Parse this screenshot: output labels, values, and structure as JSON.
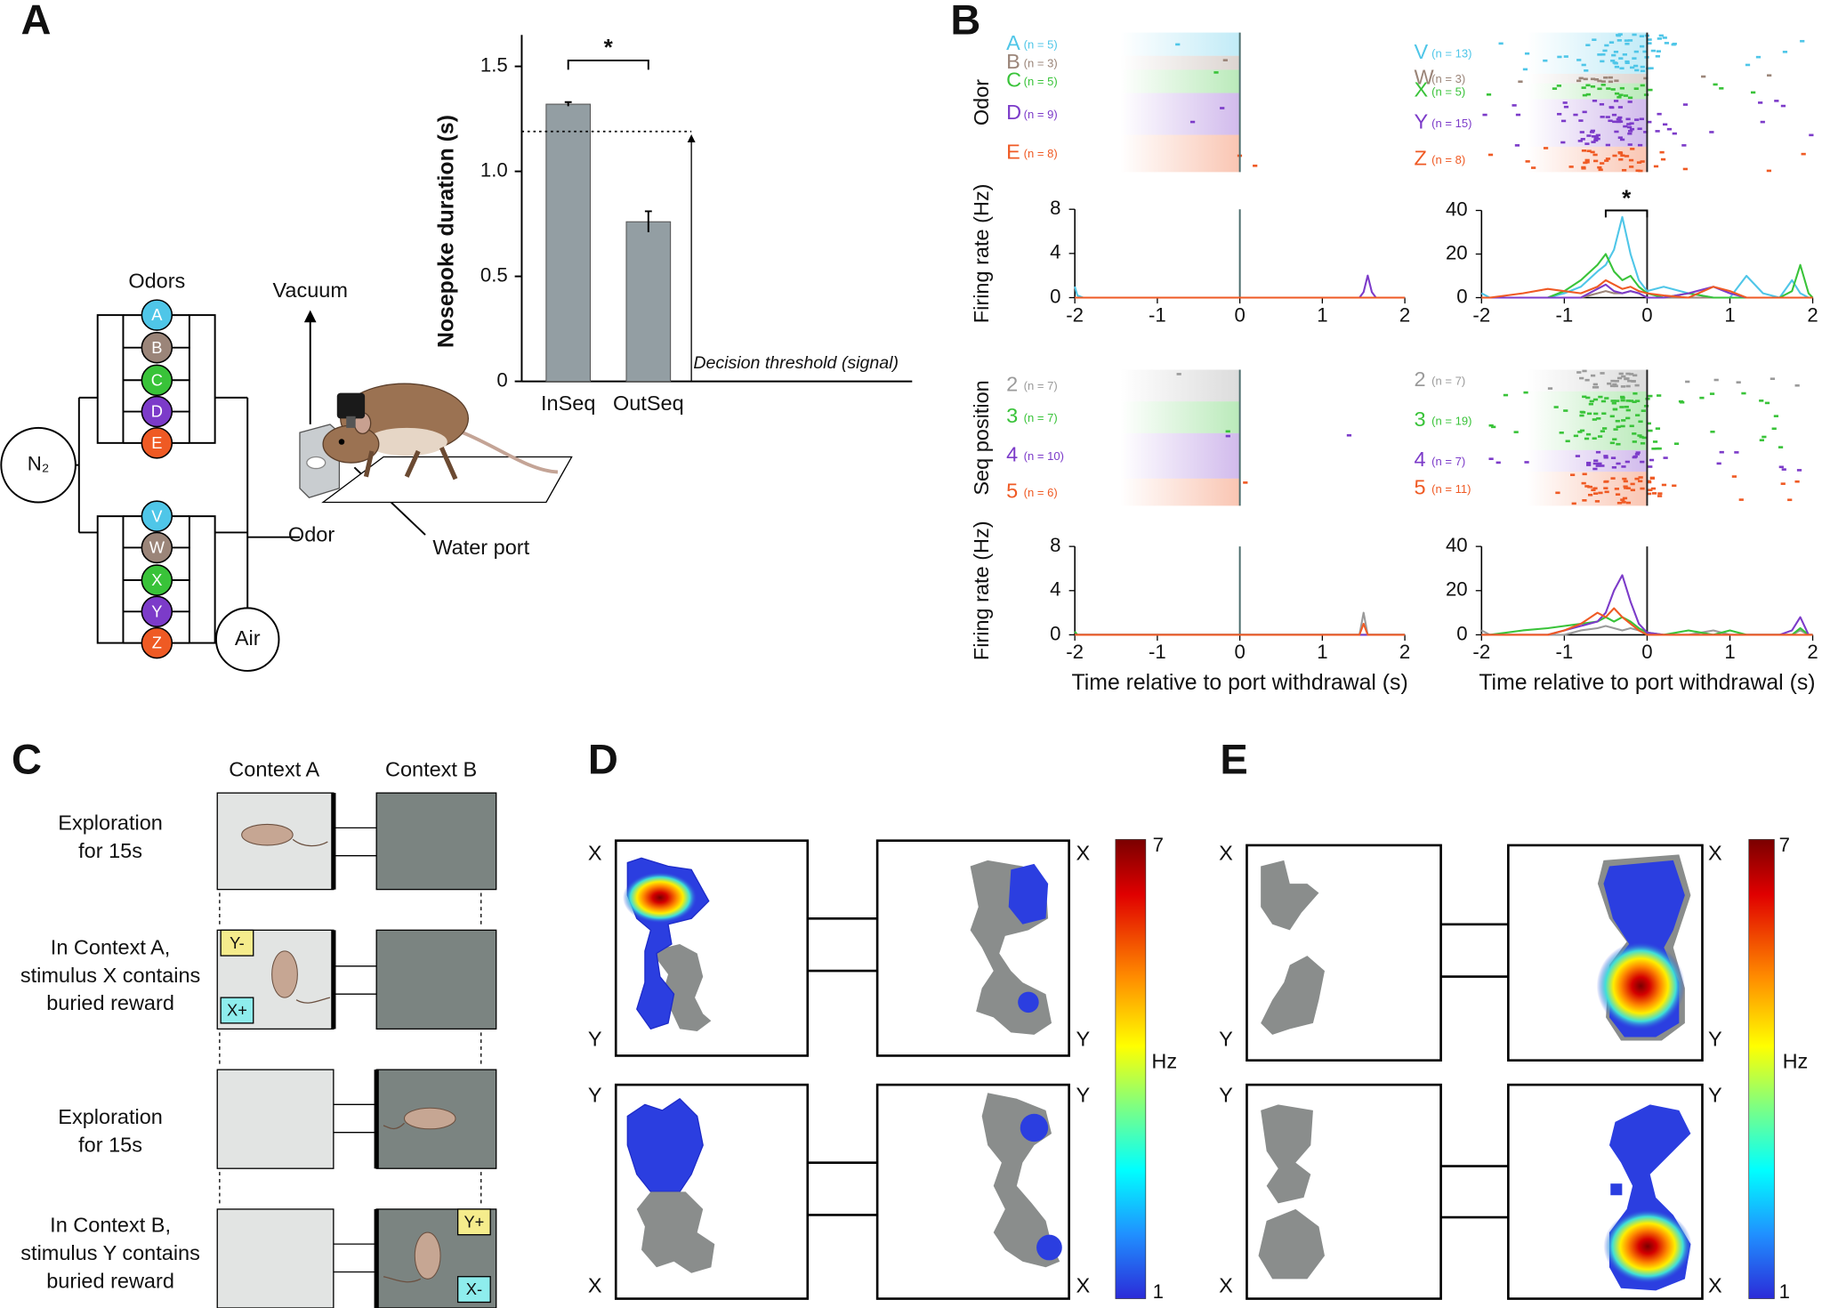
{
  "panels": {
    "a": {
      "label": "A",
      "odors_title": "Odors",
      "odors": [
        "A",
        "B",
        "C",
        "D",
        "E",
        "V",
        "W",
        "X",
        "Y",
        "Z"
      ],
      "odor_colors": [
        "#4fc6e8",
        "#9b8579",
        "#39c339",
        "#7c3bc9",
        "#ef5a24",
        "#4fc6e8",
        "#9b8579",
        "#39c339",
        "#7c3bc9",
        "#ef5a24"
      ],
      "source": "N₂",
      "air": "Air",
      "vacuum": "Vacuum",
      "odor": "Odor",
      "water_port": "Water port"
    },
    "b": {
      "label": "B"
    },
    "c": {
      "label": "C",
      "columns": [
        "Context A",
        "Context B"
      ],
      "rows": [
        [
          "Exploration",
          "for 15s"
        ],
        [
          "In Context A,",
          "stimulus X contains",
          "buried reward"
        ],
        [
          "Exploration",
          "for 15s"
        ],
        [
          "In Context B,",
          "stimulus Y contains",
          "buried reward"
        ]
      ],
      "cups": [
        "Y-",
        "X+",
        "Y+",
        "X-"
      ]
    },
    "d": {
      "label": "D",
      "corners": [
        [
          "X",
          "Y"
        ],
        [
          "X",
          "Y"
        ],
        [
          "Y",
          "X"
        ],
        [
          "Y",
          "X"
        ]
      ],
      "colorbar": {
        "label": "Hz",
        "ticks": [
          1,
          7
        ]
      }
    },
    "e": {
      "label": "E",
      "corners": [
        [
          "X",
          "Y"
        ],
        [
          "X",
          "Y"
        ],
        [
          "Y",
          "X"
        ],
        [
          "Y",
          "X"
        ]
      ],
      "colorbar": {
        "label": "Hz",
        "ticks": [
          1,
          7
        ]
      }
    }
  },
  "chart_data": [
    {
      "type": "bar",
      "ylabel": "Nosepoke duration (s)",
      "categories": [
        "InSeq",
        "OutSeq"
      ],
      "values": [
        1.32,
        0.76
      ],
      "errors": [
        0.01,
        0.05
      ],
      "color": "#939ea3",
      "ylim": [
        0,
        1.65
      ],
      "yticks": [
        0,
        0.5,
        {
          "value": 1,
          "label": "1.0"
        },
        1.5
      ],
      "threshold": 1.19,
      "threshold_label": "Decision threshold (signal)",
      "significance": "*"
    },
    {
      "type": "line",
      "row_label": "Odor",
      "ylabel": "Firing rate (Hz)",
      "xlim": [
        -2,
        2
      ],
      "xticks": [
        -2,
        -1,
        0,
        1,
        2
      ],
      "ylim": [
        0,
        8
      ],
      "yticks": [
        0,
        4,
        8
      ],
      "x": [
        -2,
        -1.97,
        -1.9,
        -1,
        0,
        1,
        1.45,
        1.5,
        1.55,
        1.6,
        1.65,
        2
      ],
      "series": [
        {
          "name": "A",
          "n": 5,
          "n_label": "(n = 5)",
          "color": "#4fc6e8",
          "values": [
            1,
            0.2,
            0,
            0,
            0,
            0,
            0,
            0,
            0,
            0,
            0,
            0
          ]
        },
        {
          "name": "B",
          "n": 3,
          "n_label": "(n = 3)",
          "color": "#9b8579",
          "values": [
            0,
            0,
            0,
            0,
            0,
            0,
            0,
            0,
            0,
            0,
            0,
            0
          ]
        },
        {
          "name": "C",
          "n": 5,
          "n_label": "(n = 5)",
          "color": "#39c339",
          "values": [
            0,
            0,
            0,
            0,
            0,
            0,
            0,
            0,
            0,
            0,
            0,
            0
          ]
        },
        {
          "name": "D",
          "n": 9,
          "n_label": "(n = 9)",
          "color": "#7c3bc9",
          "values": [
            0,
            0,
            0,
            0,
            0,
            0,
            0,
            0.5,
            2,
            0.5,
            0,
            0
          ]
        },
        {
          "name": "E",
          "n": 8,
          "n_label": "(n = 8)",
          "color": "#ef5a24",
          "values": [
            0,
            0,
            0,
            0,
            0,
            0,
            0,
            0,
            0,
            0,
            0,
            0
          ]
        }
      ]
    },
    {
      "type": "line",
      "xlim": [
        -2,
        2
      ],
      "xticks": [
        -2,
        -1,
        0,
        1,
        2
      ],
      "ylim": [
        0,
        40
      ],
      "yticks": [
        0,
        20,
        40
      ],
      "significance": "*",
      "x": [
        -2,
        -1.9,
        -1.5,
        -1.2,
        -1,
        -0.8,
        -0.6,
        -0.5,
        -0.4,
        -0.3,
        -0.2,
        -0.1,
        0,
        0.2,
        0.5,
        0.8,
        1,
        1.2,
        1.4,
        1.6,
        1.75,
        1.85,
        1.95,
        2
      ],
      "series": [
        {
          "name": "V",
          "n": 13,
          "n_label": "(n = 13)",
          "color": "#4fc6e8",
          "values": [
            2,
            0,
            0,
            0,
            2,
            5,
            12,
            15,
            22,
            37,
            20,
            8,
            3,
            5,
            2,
            0,
            0,
            10,
            2,
            0,
            8,
            2,
            0,
            0
          ]
        },
        {
          "name": "W",
          "n": 3,
          "n_label": "(n = 3)",
          "color": "#9b8579",
          "values": [
            0,
            0,
            0,
            0,
            0,
            0,
            2,
            3,
            2,
            2,
            3,
            2,
            0,
            0,
            0,
            0,
            0,
            0,
            0,
            0,
            0,
            0,
            0,
            0
          ]
        },
        {
          "name": "X",
          "n": 5,
          "n_label": "(n = 5)",
          "color": "#39c339",
          "values": [
            0,
            0,
            0,
            0,
            3,
            8,
            15,
            20,
            12,
            8,
            10,
            5,
            2,
            0,
            2,
            0,
            0,
            0,
            0,
            0,
            3,
            15,
            2,
            0
          ]
        },
        {
          "name": "Y",
          "n": 15,
          "n_label": "(n = 15)",
          "color": "#7c3bc9",
          "values": [
            0,
            0,
            0,
            0,
            0,
            0,
            4,
            6,
            3,
            2,
            3,
            2,
            0,
            0,
            2,
            5,
            2,
            0,
            0,
            0,
            0,
            0,
            0,
            0
          ]
        },
        {
          "name": "Z",
          "n": 8,
          "n_label": "(n = 8)",
          "color": "#ef5a24",
          "values": [
            0,
            0,
            2,
            4,
            3,
            2,
            5,
            8,
            6,
            4,
            5,
            3,
            2,
            1,
            0,
            5,
            3,
            0,
            0,
            0,
            0,
            0,
            0,
            0
          ]
        }
      ]
    },
    {
      "type": "line",
      "row_label": "Seq position",
      "ylabel": "Firing rate (Hz)",
      "xlabel": "Time relative to port withdrawal (s)",
      "xlim": [
        -2,
        2
      ],
      "xticks": [
        -2,
        -1,
        0,
        1,
        2
      ],
      "ylim": [
        0,
        8
      ],
      "yticks": [
        0,
        4,
        8
      ],
      "x": [
        -2,
        -1.97,
        -1,
        0,
        1,
        1.45,
        1.5,
        1.55,
        2
      ],
      "series": [
        {
          "name": "2",
          "n": 7,
          "n_label": "(n = 7)",
          "color": "#9a9a9a",
          "values": [
            0,
            0,
            0,
            0,
            0,
            0,
            2,
            0,
            0
          ]
        },
        {
          "name": "3",
          "n": 7,
          "n_label": "(n = 7)",
          "color": "#39c339",
          "values": [
            0.3,
            0,
            0,
            0,
            0,
            0,
            0,
            0,
            0
          ]
        },
        {
          "name": "4",
          "n": 10,
          "n_label": "(n = 10)",
          "color": "#7c3bc9",
          "values": [
            0,
            0,
            0,
            0,
            0,
            0,
            0,
            0,
            0
          ]
        },
        {
          "name": "5",
          "n": 6,
          "n_label": "(n = 6)",
          "color": "#ef5a24",
          "values": [
            0,
            0,
            0,
            0,
            0,
            0,
            1,
            0,
            0
          ]
        }
      ]
    },
    {
      "type": "line",
      "xlabel": "Time relative to port withdrawal (s)",
      "xlim": [
        -2,
        2
      ],
      "xticks": [
        -2,
        -1,
        0,
        1,
        2
      ],
      "ylim": [
        0,
        40
      ],
      "yticks": [
        0,
        20,
        40
      ],
      "x": [
        -2,
        -1.9,
        -1.5,
        -1.2,
        -1,
        -0.8,
        -0.6,
        -0.5,
        -0.4,
        -0.3,
        -0.2,
        -0.1,
        0,
        0.2,
        0.5,
        0.8,
        1,
        1.2,
        1.4,
        1.6,
        1.75,
        1.85,
        1.95,
        2
      ],
      "series": [
        {
          "name": "2",
          "n": 7,
          "n_label": "(n = 7)",
          "color": "#9a9a9a",
          "values": [
            2,
            0,
            0,
            0,
            0,
            2,
            3,
            4,
            3,
            2,
            3,
            2,
            0,
            0,
            0,
            2,
            0,
            0,
            0,
            0,
            0,
            2,
            0,
            0
          ]
        },
        {
          "name": "3",
          "n": 19,
          "n_label": "(n = 19)",
          "color": "#39c339",
          "values": [
            0,
            0,
            2,
            3,
            4,
            5,
            6,
            8,
            6,
            8,
            6,
            3,
            1,
            0,
            2,
            0,
            2,
            0,
            0,
            0,
            0,
            3,
            0,
            0
          ]
        },
        {
          "name": "4",
          "n": 7,
          "n_label": "(n = 7)",
          "color": "#7c3bc9",
          "values": [
            0,
            0,
            0,
            0,
            2,
            4,
            6,
            10,
            20,
            27,
            15,
            5,
            1,
            0,
            0,
            0,
            0,
            0,
            0,
            0,
            2,
            8,
            0,
            0
          ]
        },
        {
          "name": "5",
          "n": 11,
          "n_label": "(n = 11)",
          "color": "#ef5a24",
          "values": [
            0,
            0,
            0,
            0,
            2,
            5,
            10,
            8,
            12,
            8,
            5,
            2,
            0,
            0,
            0,
            0,
            0,
            0,
            0,
            0,
            0,
            0,
            0,
            0
          ]
        }
      ]
    }
  ]
}
